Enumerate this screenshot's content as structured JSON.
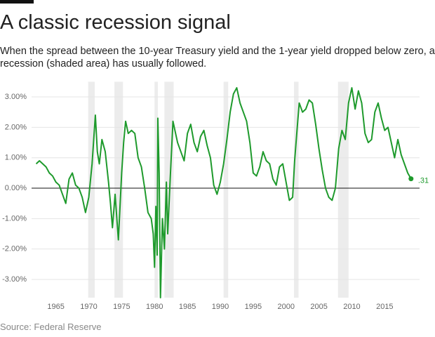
{
  "chart_data": {
    "type": "line",
    "title": "A classic recession signal",
    "subtitle": "When the spread between the 10-year Treasury yield and the 1-year yield dropped below zero, a recession (shaded area) has usually followed.",
    "source": "Source: Federal Reserve",
    "xlim": [
      1961.3,
      2020.3
    ],
    "xticks": [
      1965,
      1970,
      1975,
      1980,
      1985,
      1990,
      1995,
      2000,
      2005,
      2010,
      2015
    ],
    "ylim": [
      -3.6,
      3.5
    ],
    "yticks": [
      {
        "value": 3,
        "label": "3.00%"
      },
      {
        "value": 2,
        "label": "2.00%"
      },
      {
        "value": 1,
        "label": "1.00%"
      },
      {
        "value": 0,
        "label": "0.00%"
      },
      {
        "value": -1,
        "label": "-1.00%"
      },
      {
        "value": -2,
        "label": "-2.00%"
      },
      {
        "value": -3,
        "label": "-3.00%"
      }
    ],
    "grid": true,
    "recessions": [
      [
        1969.9,
        1970.9
      ],
      [
        1973.9,
        1975.2
      ],
      [
        1980.0,
        1980.5
      ],
      [
        1981.5,
        1982.9
      ],
      [
        1990.5,
        1991.2
      ],
      [
        2001.2,
        2001.9
      ],
      [
        2007.9,
        2009.5
      ]
    ],
    "recession_color": "#ececec",
    "series": [
      {
        "color": "#1e9a2c",
        "x": [
          1962.0,
          1962.5,
          1963.0,
          1963.5,
          1964.0,
          1964.5,
          1965.0,
          1965.5,
          1966.0,
          1966.5,
          1967.0,
          1967.5,
          1968.0,
          1968.5,
          1969.0,
          1969.5,
          1970.0,
          1970.5,
          1971.0,
          1971.3,
          1971.6,
          1972.0,
          1972.5,
          1973.0,
          1973.3,
          1973.6,
          1974.0,
          1974.5,
          1975.0,
          1975.3,
          1975.6,
          1976.0,
          1976.5,
          1977.0,
          1977.5,
          1978.0,
          1978.5,
          1979.0,
          1979.5,
          1979.8,
          1980.0,
          1980.2,
          1980.4,
          1980.5,
          1980.7,
          1980.9,
          1981.2,
          1981.5,
          1981.8,
          1982.0,
          1982.4,
          1982.8,
          1983.0,
          1983.5,
          1984.0,
          1984.5,
          1985.0,
          1985.5,
          1986.0,
          1986.5,
          1987.0,
          1987.5,
          1988.0,
          1988.5,
          1989.0,
          1989.5,
          1990.0,
          1990.5,
          1991.0,
          1991.5,
          1992.0,
          1992.5,
          1993.0,
          1993.5,
          1994.0,
          1994.5,
          1995.0,
          1995.5,
          1996.0,
          1996.5,
          1997.0,
          1997.5,
          1998.0,
          1998.5,
          1999.0,
          1999.5,
          2000.0,
          2000.5,
          2001.0,
          2001.3,
          2001.7,
          2002.0,
          2002.5,
          2003.0,
          2003.5,
          2004.0,
          2004.5,
          2005.0,
          2005.5,
          2006.0,
          2006.5,
          2007.0,
          2007.5,
          2008.0,
          2008.5,
          2009.0,
          2009.5,
          2010.0,
          2010.5,
          2011.0,
          2011.5,
          2012.0,
          2012.5,
          2013.0,
          2013.5,
          2014.0,
          2014.5,
          2015.0,
          2015.5,
          2016.0,
          2016.5,
          2017.0,
          2017.5,
          2018.0,
          2018.5,
          2019.0
        ],
        "values": [
          0.8,
          0.9,
          0.8,
          0.7,
          0.5,
          0.4,
          0.2,
          0.1,
          -0.2,
          -0.5,
          0.3,
          0.5,
          0.1,
          0.0,
          -0.3,
          -0.8,
          -0.3,
          0.8,
          2.4,
          1.2,
          0.8,
          1.6,
          1.2,
          0.2,
          -0.5,
          -1.3,
          -0.2,
          -1.7,
          0.5,
          1.5,
          2.2,
          1.8,
          1.9,
          1.8,
          1.0,
          0.7,
          0.0,
          -0.8,
          -1.0,
          -1.5,
          -2.6,
          -0.6,
          -2.2,
          2.3,
          0.5,
          -3.6,
          -1.0,
          -2.0,
          0.2,
          -1.5,
          0.4,
          2.2,
          2.0,
          1.5,
          1.2,
          0.9,
          1.8,
          2.1,
          1.5,
          1.2,
          1.7,
          1.9,
          1.4,
          1.0,
          0.1,
          -0.2,
          0.2,
          0.8,
          1.6,
          2.5,
          3.1,
          3.3,
          2.8,
          2.5,
          2.2,
          1.5,
          0.5,
          0.4,
          0.7,
          1.2,
          0.9,
          0.8,
          0.3,
          0.1,
          0.7,
          0.8,
          0.2,
          -0.4,
          -0.3,
          0.9,
          2.0,
          2.8,
          2.5,
          2.6,
          2.9,
          2.8,
          2.1,
          1.3,
          0.6,
          0.0,
          -0.3,
          -0.4,
          0.0,
          1.3,
          1.9,
          1.6,
          2.8,
          3.3,
          2.6,
          3.2,
          2.8,
          1.8,
          1.5,
          1.6,
          2.5,
          2.8,
          2.3,
          1.9,
          2.0,
          1.5,
          1.0,
          1.6,
          1.1,
          0.8,
          0.5,
          0.31
        ]
      }
    ],
    "annotation": {
      "x": 2019.0,
      "y": 0.31,
      "label": ".31"
    }
  }
}
